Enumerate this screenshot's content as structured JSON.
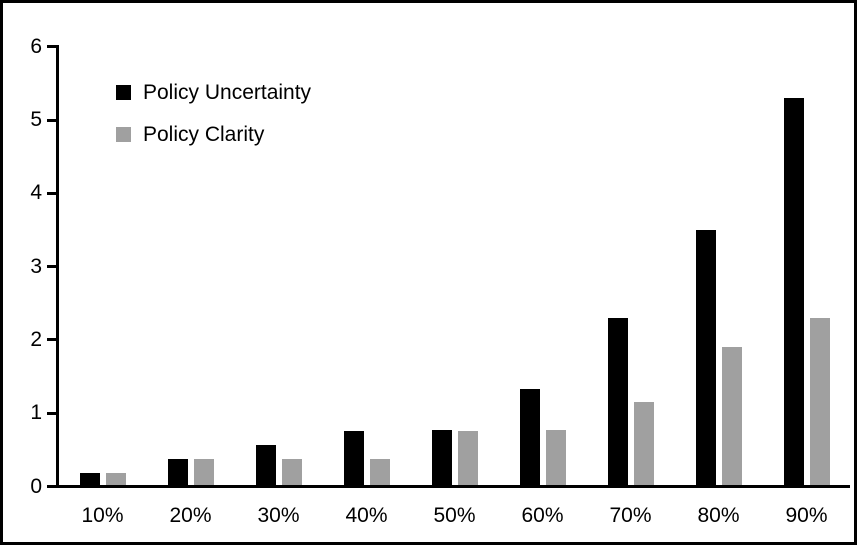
{
  "chart_data": {
    "type": "bar",
    "title": "",
    "xlabel": "",
    "ylabel": "",
    "categories": [
      "10%",
      "20%",
      "30%",
      "40%",
      "50%",
      "60%",
      "70%",
      "80%",
      "90%"
    ],
    "series": [
      {
        "name": "Policy Uncertainty",
        "color": "#000000",
        "values": [
          0.19,
          0.38,
          0.57,
          0.76,
          0.77,
          1.33,
          2.3,
          3.5,
          5.3
        ]
      },
      {
        "name": "Policy Clarity",
        "color": "#a0a0a0",
        "values": [
          0.19,
          0.38,
          0.38,
          0.38,
          0.76,
          0.77,
          1.15,
          1.9,
          2.3
        ]
      }
    ],
    "ylim": [
      0,
      6
    ],
    "yticks": [
      0,
      1,
      2,
      3,
      4,
      5,
      6
    ],
    "grid": false,
    "legend_position": "upper-left-inside",
    "axis_color": "#000000",
    "background_color": "#ffffff",
    "frame_border_color": "#000000"
  }
}
